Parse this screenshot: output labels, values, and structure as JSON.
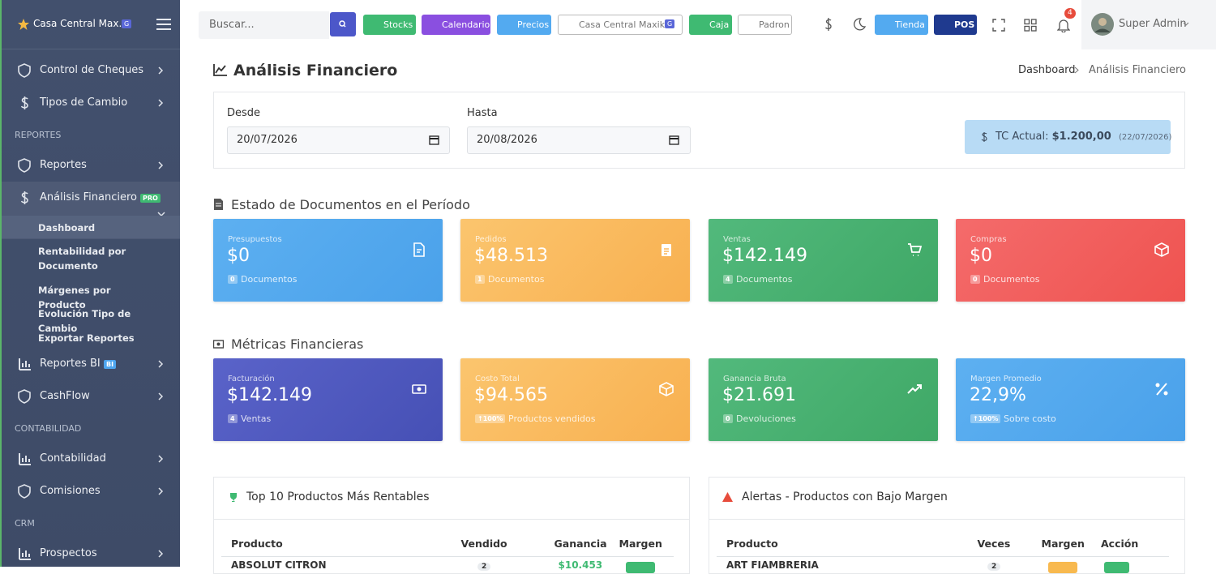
{
  "sidebar": {
    "brand": "Casa Central Max...",
    "brand_badge": "G",
    "items": [
      {
        "label": "Control de Cheques"
      },
      {
        "label": "Tipos de Cambio"
      },
      {
        "section": "REPORTES"
      },
      {
        "label": "Reportes"
      },
      {
        "label": "Análisis Financiero",
        "badge": "PRO",
        "sub": [
          "Dashboard",
          "Rentabilidad por Documento",
          "Márgenes por Producto",
          "Evolución Tipo de Cambio",
          "Exportar Reportes"
        ]
      },
      {
        "label": "Reportes BI",
        "badge": "BI"
      },
      {
        "label": "CashFlow"
      },
      {
        "section": "CONTABILIDAD"
      },
      {
        "label": "Contabilidad"
      },
      {
        "label": "Comisiones"
      },
      {
        "section": "CRM"
      },
      {
        "label": "Prospectos"
      }
    ]
  },
  "topbar": {
    "search_placeholder": "Buscar...",
    "buttons": [
      "Stocks",
      "Calendario",
      "Precios"
    ],
    "branch": {
      "label": "Casa Central Maxik...",
      "badge": "G"
    },
    "buttons2": [
      "Caja",
      "Padron"
    ],
    "store_buttons": [
      "Tienda",
      "POS"
    ],
    "notifications": "4",
    "user": "Super Admin"
  },
  "header": {
    "title": "Análisis Financiero",
    "breadcrumb": [
      "Dashboard",
      "Análisis Financiero"
    ]
  },
  "filters": {
    "from_label": "Desde",
    "from": "20/07/2026",
    "to_label": "Hasta",
    "to": "20/08/2026",
    "rate_label": "TC Actual:",
    "rate": "$1.200,00",
    "rate_date": "(22/07/2026)"
  },
  "documents": {
    "title": "Estado de Documentos en el Período",
    "cards": [
      {
        "label": "Presupuestos",
        "value": "$0",
        "count": "0",
        "note": "Documentos"
      },
      {
        "label": "Pedidos",
        "value": "$48.513",
        "count": "1",
        "note": "Documentos"
      },
      {
        "label": "Ventas",
        "value": "$142.149",
        "count": "4",
        "note": "Documentos"
      },
      {
        "label": "Compras",
        "value": "$0",
        "count": "0",
        "note": "Documentos"
      }
    ]
  },
  "metrics": {
    "title": "Métricas Financieras",
    "cards": [
      {
        "label": "Facturación",
        "value": "$142.149",
        "count": "4",
        "note": "Ventas"
      },
      {
        "label": "Costo Total",
        "value": "$94.565",
        "count": "↑100%",
        "note": "Productos vendidos"
      },
      {
        "label": "Ganancia Bruta",
        "value": "$21.691",
        "count": "0",
        "note": "Devoluciones"
      },
      {
        "label": "Margen Promedio",
        "value": "22,9%",
        "count": "↑100%",
        "note": "Sobre costo"
      }
    ]
  },
  "top_products": {
    "title": "Top 10 Productos Más Rentables",
    "columns": [
      "Producto",
      "Vendido",
      "Ganancia",
      "Margen"
    ],
    "rows": [
      [
        "ABSOLUT CITRON",
        "2",
        "$10.453"
      ]
    ]
  },
  "alerts": {
    "title": "Alertas - Productos con Bajo Margen",
    "columns": [
      "Producto",
      "Veces",
      "Margen",
      "Acción"
    ],
    "rows": [
      [
        "ART FIAMBRERIA",
        "2"
      ]
    ]
  }
}
